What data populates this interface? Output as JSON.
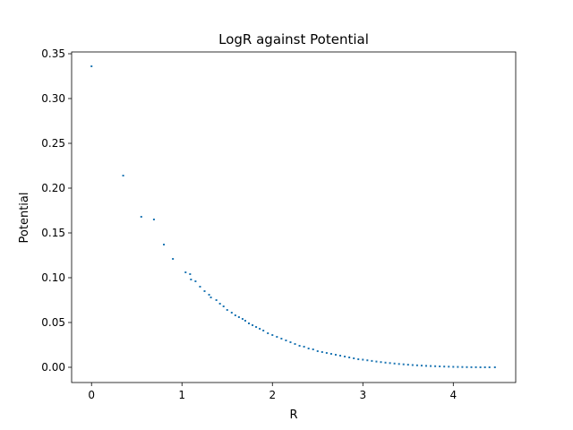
{
  "chart_data": {
    "type": "scatter",
    "title": "LogR against Potential",
    "xlabel": "R",
    "ylabel": "Potential",
    "xlim": [
      -0.22,
      4.69
    ],
    "ylim": [
      -0.017,
      0.352
    ],
    "xticks": [
      {
        "value": 0,
        "label": "0"
      },
      {
        "value": 1,
        "label": "1"
      },
      {
        "value": 2,
        "label": "2"
      },
      {
        "value": 3,
        "label": "3"
      },
      {
        "value": 4,
        "label": "4"
      }
    ],
    "yticks": [
      {
        "value": 0.0,
        "label": "0.00"
      },
      {
        "value": 0.05,
        "label": "0.05"
      },
      {
        "value": 0.1,
        "label": "0.10"
      },
      {
        "value": 0.15,
        "label": "0.15"
      },
      {
        "value": 0.2,
        "label": "0.20"
      },
      {
        "value": 0.25,
        "label": "0.25"
      },
      {
        "value": 0.3,
        "label": "0.30"
      },
      {
        "value": 0.35,
        "label": "0.35"
      }
    ],
    "grid": false,
    "marker_color": "#1f77b4",
    "series": [
      {
        "values_description_free": true,
        "x": [
          0.0,
          0.35,
          0.55,
          0.69,
          0.8,
          0.9,
          1.04,
          1.09,
          1.1,
          1.15,
          1.2,
          1.25,
          1.3,
          1.32,
          1.38,
          1.42,
          1.46,
          1.5,
          1.55,
          1.59,
          1.63,
          1.67,
          1.7,
          1.74,
          1.78,
          1.82,
          1.86,
          1.9,
          1.95,
          2.0,
          2.05,
          2.1,
          2.15,
          2.2,
          2.25,
          2.3,
          2.35,
          2.4,
          2.45,
          2.5,
          2.55,
          2.6,
          2.65,
          2.7,
          2.75,
          2.8,
          2.85,
          2.9,
          2.95,
          3.0,
          3.05,
          3.1,
          3.15,
          3.2,
          3.25,
          3.3,
          3.35,
          3.4,
          3.45,
          3.5,
          3.55,
          3.6,
          3.65,
          3.7,
          3.75,
          3.8,
          3.85,
          3.9,
          3.95,
          4.0,
          4.05,
          4.1,
          4.15,
          4.2,
          4.25,
          4.3,
          4.35,
          4.4,
          4.46
        ],
        "y": [
          0.336,
          0.214,
          0.168,
          0.165,
          0.137,
          0.121,
          0.106,
          0.104,
          0.098,
          0.096,
          0.09,
          0.085,
          0.081,
          0.078,
          0.075,
          0.071,
          0.068,
          0.064,
          0.061,
          0.058,
          0.056,
          0.054,
          0.052,
          0.049,
          0.047,
          0.045,
          0.043,
          0.041,
          0.038,
          0.036,
          0.034,
          0.032,
          0.03,
          0.028,
          0.026,
          0.024,
          0.023,
          0.021,
          0.02,
          0.018,
          0.017,
          0.016,
          0.015,
          0.014,
          0.013,
          0.012,
          0.011,
          0.01,
          0.009,
          0.0085,
          0.0078,
          0.0071,
          0.0064,
          0.0058,
          0.0052,
          0.0047,
          0.0042,
          0.0037,
          0.0033,
          0.0029,
          0.0025,
          0.0022,
          0.0019,
          0.0016,
          0.0014,
          0.0012,
          0.001,
          0.0008,
          0.0007,
          0.0005,
          0.0004,
          0.0003,
          0.0002,
          0.0001,
          0.0001,
          0.0,
          0.0,
          0.0,
          0.0
        ]
      }
    ]
  }
}
